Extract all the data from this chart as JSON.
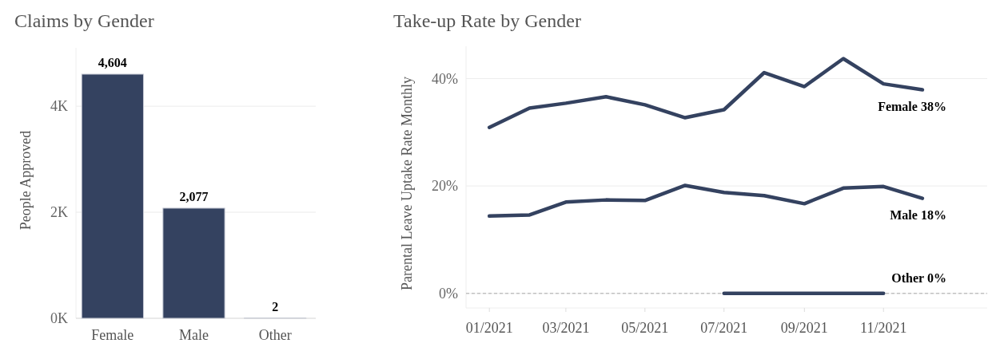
{
  "chart_data": [
    {
      "type": "bar",
      "title": "Claims by Gender",
      "ylabel": "People Approved",
      "categories": [
        "Female",
        "Male",
        "Other"
      ],
      "values": [
        4604,
        2077,
        2
      ],
      "value_labels": [
        "4,604",
        "2,077",
        "2"
      ],
      "color": "#344260",
      "ylim": [
        0,
        5100
      ],
      "yticks": [
        {
          "value": 0,
          "label": "0K"
        },
        {
          "value": 2000,
          "label": "2K"
        },
        {
          "value": 4000,
          "label": "4K"
        }
      ],
      "grid": "y"
    },
    {
      "type": "line",
      "title": "Take-up Rate by Gender",
      "ylabel": "Parental Leave Uptake Rate Monthly",
      "x": [
        "2021-01",
        "2021-02",
        "2021-03",
        "2021-04",
        "2021-05",
        "2021-06",
        "2021-07",
        "2021-08",
        "2021-09",
        "2021-10",
        "2021-11",
        "2021-12"
      ],
      "series": [
        {
          "color": "#344260",
          "values": [
            30.9,
            34.5,
            35.4,
            36.6,
            35.1,
            32.7,
            34.2,
            41.1,
            38.5,
            43.7,
            39.0,
            37.9
          ]
        },
        {
          "color": "#344260",
          "values": [
            14.4,
            14.6,
            17.0,
            17.4,
            17.3,
            20.1,
            18.8,
            18.2,
            16.7,
            19.6,
            19.9,
            17.7
          ]
        },
        {
          "color": "#344260",
          "values": [
            null,
            null,
            null,
            null,
            null,
            null,
            0,
            0,
            0,
            0,
            0,
            null
          ]
        }
      ],
      "annotations": [
        {
          "text": "Female 38%",
          "x": "2021-12",
          "y": 37.9
        },
        {
          "text": "Male 18%",
          "x": "2021-12",
          "y": 17.7
        },
        {
          "text": "Other 0%",
          "x": "2021-12",
          "y": 0
        }
      ],
      "ylim": [
        -2.7,
        46
      ],
      "yticks": [
        {
          "value": 0,
          "label": "0%"
        },
        {
          "value": 20,
          "label": "20%"
        },
        {
          "value": 40,
          "label": "40%"
        }
      ],
      "xlim": [
        "2020-12-14",
        "2022-01-20"
      ],
      "xticks": [
        {
          "value": "2021-01",
          "label": "01/2021"
        },
        {
          "value": "2021-03",
          "label": "03/2021"
        },
        {
          "value": "2021-05",
          "label": "05/2021"
        },
        {
          "value": "2021-07",
          "label": "07/2021"
        },
        {
          "value": "2021-09",
          "label": "09/2021"
        },
        {
          "value": "2021-11",
          "label": "11/2021"
        }
      ],
      "grid": "y",
      "ref_lines": [
        {
          "axis": "y",
          "value": 0,
          "line_style": "dashed",
          "color": "#aaaaaa"
        }
      ],
      "line_style": "solid",
      "marker": "none"
    }
  ]
}
